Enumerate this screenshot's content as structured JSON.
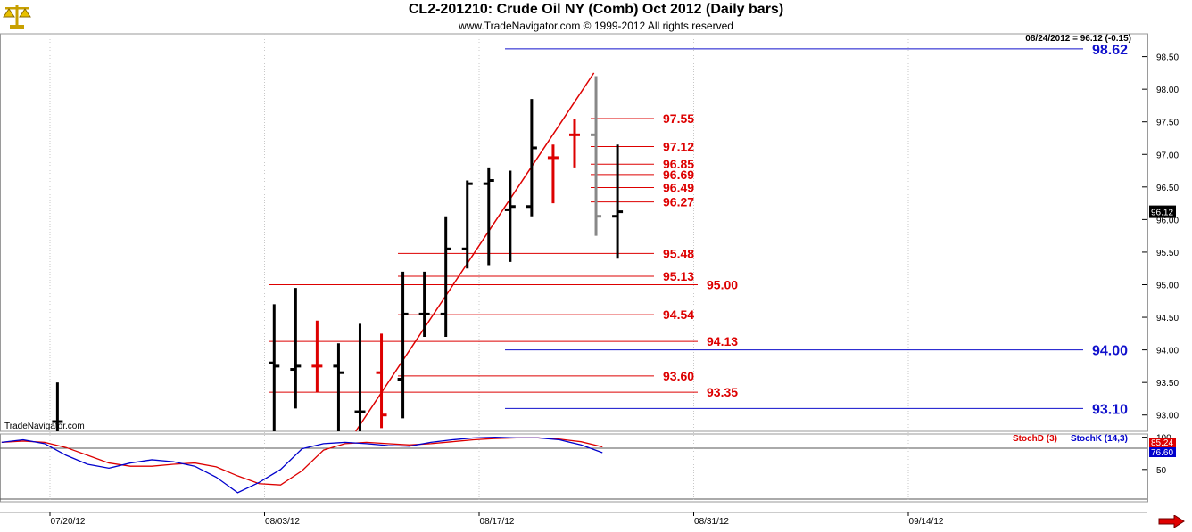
{
  "header": {
    "title": "CL2-201210:  Crude Oil NY (Comb) Oct 2012  (Daily bars)",
    "copyright": "www.TradeNavigator.com © 1999-2012 All rights reserved"
  },
  "watermark": "TradeNavigator.com",
  "last_bar_label": "08/24/2012 = 96.12 (-0.15)",
  "price_tag": "96.12",
  "colors": {
    "up": "#000000",
    "down": "#dd0000",
    "fib": "#dd0000",
    "blue_level": "#1010cc",
    "stochK": "#0000cc",
    "stochD": "#dd0000",
    "projection": "#888888"
  },
  "icons": {
    "logo": "gold-balance-scale-icon",
    "scroll": "red-right-arrow-icon"
  },
  "chart_data": [
    {
      "type": "bar",
      "subtype": "ohlc",
      "title": "CL2-201210:  Crude Oil NY (Comb) Oct 2012  (Daily bars)",
      "ylim": [
        92.75,
        98.85
      ],
      "y_ticks": [
        "98.50",
        "98.00",
        "97.50",
        "97.00",
        "96.50",
        "96.00",
        "95.50",
        "95.00",
        "94.50",
        "94.00",
        "93.50",
        "93.00"
      ],
      "x_ticks": [
        "07/20/12",
        "08/03/12",
        "08/17/12",
        "08/31/12",
        "09/14/12"
      ],
      "x_tick_days": [
        3,
        13,
        23,
        33,
        43
      ],
      "grid": true,
      "bars": [
        {
          "d": 2.6,
          "o": 92.9,
          "h": 93.5,
          "l": 92.75,
          "c": 92.9,
          "dir": "up"
        },
        {
          "d": 12.7,
          "o": 93.8,
          "h": 94.7,
          "l": 92.75,
          "c": 93.75,
          "dir": "up"
        },
        {
          "d": 13.7,
          "o": 93.7,
          "h": 94.95,
          "l": 93.1,
          "c": 93.75,
          "dir": "up"
        },
        {
          "d": 14.7,
          "o": 93.75,
          "h": 94.45,
          "l": 93.35,
          "c": 93.75,
          "dir": "down"
        },
        {
          "d": 15.7,
          "o": 93.75,
          "h": 94.1,
          "l": 92.75,
          "c": 93.65,
          "dir": "up"
        },
        {
          "d": 16.7,
          "o": 93.05,
          "h": 94.4,
          "l": 92.75,
          "c": 93.05,
          "dir": "up"
        },
        {
          "d": 17.7,
          "o": 93.65,
          "h": 94.25,
          "l": 92.8,
          "c": 93.0,
          "dir": "down"
        },
        {
          "d": 18.7,
          "o": 93.55,
          "h": 95.2,
          "l": 92.95,
          "c": 94.55,
          "dir": "up"
        },
        {
          "d": 19.7,
          "o": 94.55,
          "h": 95.2,
          "l": 94.2,
          "c": 94.55,
          "dir": "up"
        },
        {
          "d": 20.7,
          "o": 94.55,
          "h": 96.05,
          "l": 94.2,
          "c": 95.55,
          "dir": "up"
        },
        {
          "d": 21.7,
          "o": 95.55,
          "h": 96.6,
          "l": 95.25,
          "c": 96.55,
          "dir": "up"
        },
        {
          "d": 22.7,
          "o": 96.55,
          "h": 96.8,
          "l": 95.3,
          "c": 96.6,
          "dir": "up"
        },
        {
          "d": 23.7,
          "o": 96.15,
          "h": 96.75,
          "l": 95.35,
          "c": 96.2,
          "dir": "up"
        },
        {
          "d": 24.7,
          "o": 96.2,
          "h": 97.85,
          "l": 96.05,
          "c": 97.1,
          "dir": "up"
        },
        {
          "d": 25.7,
          "o": 96.95,
          "h": 97.15,
          "l": 96.25,
          "c": 96.95,
          "dir": "down"
        },
        {
          "d": 26.7,
          "o": 97.3,
          "h": 97.55,
          "l": 96.8,
          "c": 97.3,
          "dir": "down"
        },
        {
          "d": 27.7,
          "o": 97.3,
          "h": 98.2,
          "l": 95.75,
          "c": 96.05,
          "dir": "projection"
        },
        {
          "d": 28.7,
          "o": 96.05,
          "h": 97.15,
          "l": 95.4,
          "c": 96.12,
          "dir": "up"
        }
      ],
      "trendline": {
        "from": {
          "d": 16.5,
          "y": 92.75
        },
        "to": {
          "d": 27.6,
          "y": 98.25
        }
      },
      "fib_levels_short": [
        {
          "y": 97.55,
          "label": "97.55"
        },
        {
          "y": 97.12,
          "label": "97.12"
        },
        {
          "y": 96.85,
          "label": "96.85"
        },
        {
          "y": 96.69,
          "label": "96.69"
        },
        {
          "y": 96.49,
          "label": "96.49"
        },
        {
          "y": 96.27,
          "label": "96.27"
        }
      ],
      "fib_levels_mid": [
        {
          "y": 95.48,
          "label": "95.48"
        },
        {
          "y": 95.13,
          "label": "95.13"
        },
        {
          "y": 94.54,
          "label": "94.54"
        },
        {
          "y": 93.6,
          "label": "93.60"
        }
      ],
      "fib_levels_long": [
        {
          "y": 95.0,
          "label": "95.00"
        },
        {
          "y": 94.13,
          "label": "94.13"
        },
        {
          "y": 93.35,
          "label": "93.35"
        }
      ],
      "blue_levels": [
        {
          "y": 98.62,
          "label": "98.62"
        },
        {
          "y": 94.0,
          "label": "94.00"
        },
        {
          "y": 93.1,
          "label": "93.10"
        }
      ]
    },
    {
      "type": "line",
      "legend": [
        "StochD (3)",
        "StochK (14,3)"
      ],
      "ylim": [
        0,
        105
      ],
      "y_ticks": [
        "100",
        "50"
      ],
      "series": [
        {
          "name": "StochD (3)",
          "x": [
            0,
            1,
            2,
            3,
            4,
            5,
            6,
            7,
            8,
            9,
            10,
            11,
            12,
            13,
            14,
            15,
            16,
            17,
            18,
            19,
            20,
            21,
            22,
            23,
            24,
            25,
            26,
            27,
            28
          ],
          "values": [
            92,
            94,
            92,
            84,
            72,
            60,
            55,
            55,
            58,
            60,
            54,
            40,
            28,
            26,
            48,
            80,
            90,
            92,
            90,
            88,
            90,
            93,
            96,
            98,
            99,
            99,
            97,
            93,
            85
          ]
        },
        {
          "name": "StochK (14,3)",
          "x": [
            0,
            1,
            2,
            3,
            4,
            5,
            6,
            7,
            8,
            9,
            10,
            11,
            12,
            13,
            14,
            15,
            16,
            17,
            18,
            19,
            20,
            21,
            22,
            23,
            24,
            25,
            26,
            27,
            28
          ],
          "values": [
            92,
            96,
            90,
            72,
            58,
            52,
            60,
            65,
            62,
            55,
            38,
            14,
            30,
            50,
            82,
            90,
            92,
            90,
            87,
            86,
            92,
            96,
            99,
            100,
            99,
            99,
            96,
            88,
            76
          ]
        }
      ],
      "last_values": {
        "StochD (3)": "85.24",
        "StochK (14,3)": "76.60"
      }
    }
  ]
}
